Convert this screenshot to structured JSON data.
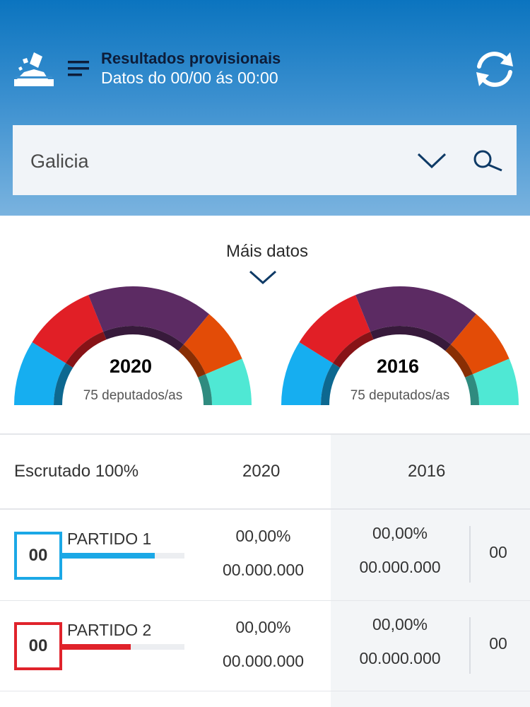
{
  "header": {
    "title": "Resultados provisionais",
    "subtitle": "Datos do 00/00 ás 00:00",
    "icons": [
      "ballot-logo-icon",
      "menu-icon",
      "refresh-icon"
    ]
  },
  "search": {
    "selected": "Galicia",
    "icons": [
      "chevron-down-icon",
      "search-icon"
    ]
  },
  "mais_datos": "Máis datos",
  "gauges": [
    {
      "year": "2020",
      "subtitle": "75 deputados/as"
    },
    {
      "year": "2016",
      "subtitle": "75 deputados/as"
    }
  ],
  "gauge_colors": [
    "#16aef0",
    "#e11f26",
    "#5c2b63",
    "#e34c07",
    "#4fe8d4"
  ],
  "table": {
    "header": {
      "scrutiny": "Escrutado 100%",
      "col_2020": "2020",
      "col_2016": "2016"
    },
    "rows": [
      {
        "party": "PARTIDO 1",
        "seats": "00",
        "color": "#1ba8e6",
        "bar_fraction": 0.76,
        "pct_2020": "00,00%",
        "votes_2020": "00.000.000",
        "pct_2016": "00,00%",
        "votes_2016": "00.000.000",
        "seats_2016": "00"
      },
      {
        "party": "PARTIDO 2",
        "seats": "00",
        "color": "#e0232b",
        "bar_fraction": 0.57,
        "pct_2020": "00,00%",
        "votes_2020": "00.000.000",
        "pct_2016": "00,00%",
        "votes_2016": "00.000.000",
        "seats_2016": "00"
      }
    ]
  }
}
